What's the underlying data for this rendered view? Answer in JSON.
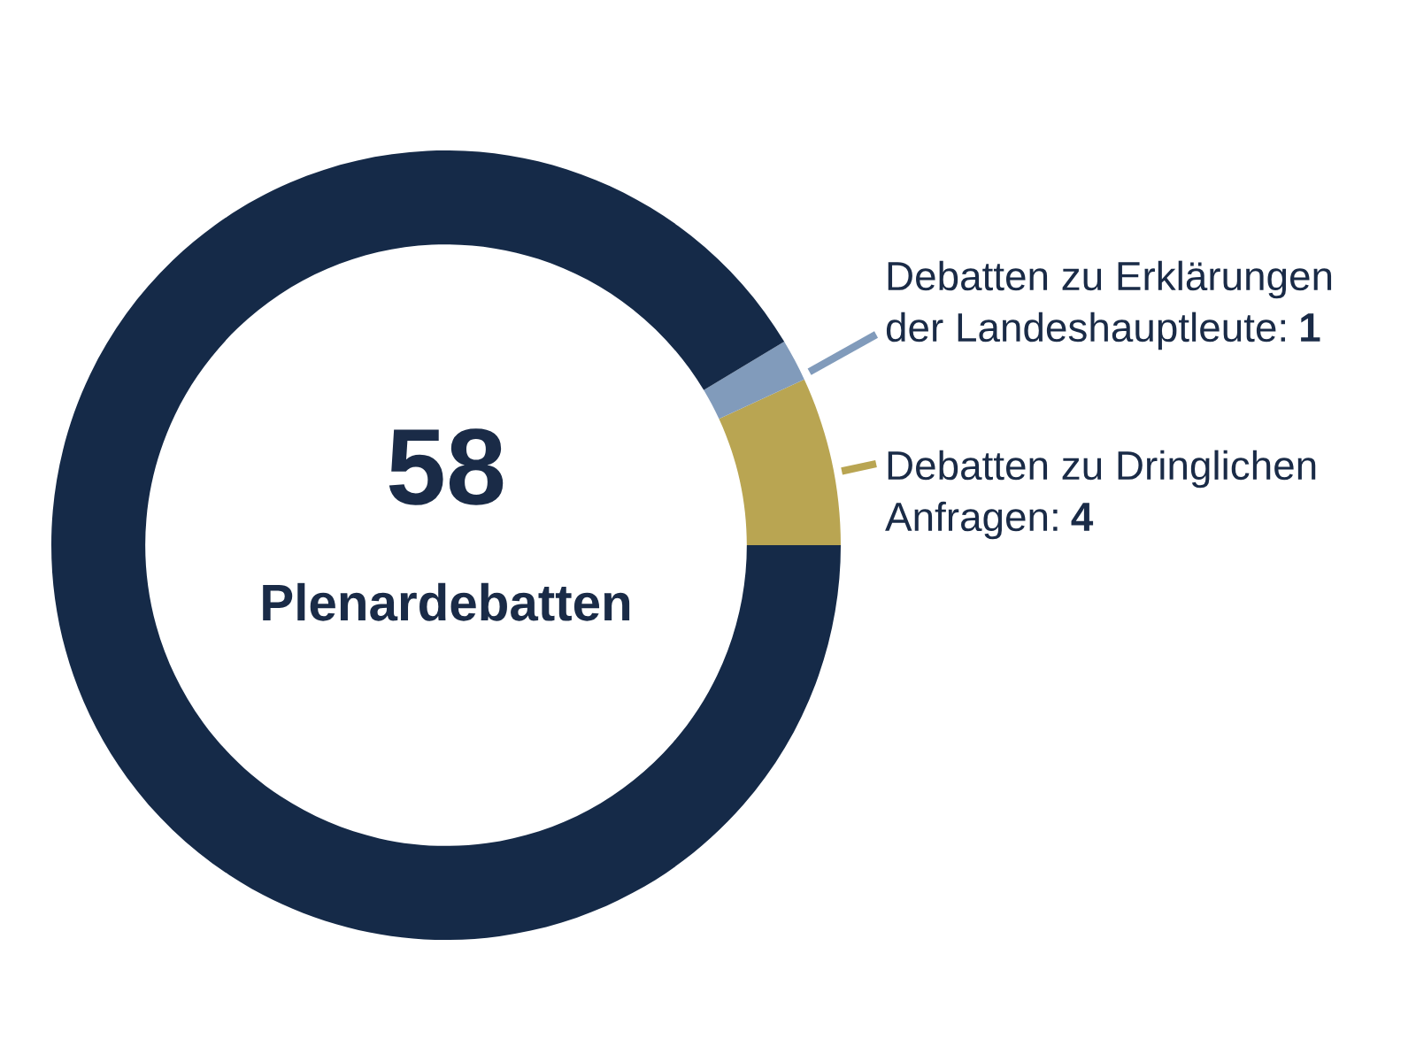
{
  "chart_data": {
    "type": "donut",
    "title": "58",
    "subtitle": "Plenardebatten",
    "categories": [
      "Debatten zu Dringlichen\nAnfragen: 4",
      "Debatten zu Erklärungen\nder Landeshauptleute: 1",
      null
    ],
    "values": [
      4,
      1,
      53
    ],
    "colors": [
      "#b9a552",
      "#819bbb",
      "#152a48"
    ]
  }
}
